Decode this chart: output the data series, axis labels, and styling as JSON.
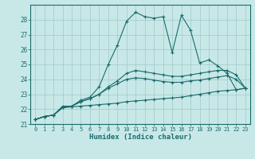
{
  "title": "",
  "xlabel": "Humidex (Indice chaleur)",
  "bg_color": "#c8e8e8",
  "grid_color": "#a0c8c8",
  "line_color": "#1a6b6b",
  "xlim": [
    -0.5,
    23.5
  ],
  "ylim": [
    21.0,
    29.0
  ],
  "yticks": [
    21,
    22,
    23,
    24,
    25,
    26,
    27,
    28
  ],
  "xticks": [
    0,
    1,
    2,
    3,
    4,
    5,
    6,
    7,
    8,
    9,
    10,
    11,
    12,
    13,
    14,
    15,
    16,
    17,
    18,
    19,
    20,
    21,
    22,
    23
  ],
  "lines": [
    [
      21.3,
      21.5,
      21.6,
      22.2,
      22.2,
      22.6,
      22.8,
      23.5,
      25.0,
      26.3,
      27.9,
      28.5,
      28.2,
      28.1,
      28.2,
      25.8,
      28.3,
      27.3,
      25.1,
      25.3,
      24.9,
      24.4,
      23.3,
      23.4
    ],
    [
      21.3,
      21.5,
      21.6,
      22.1,
      22.15,
      22.2,
      22.25,
      22.3,
      22.35,
      22.4,
      22.5,
      22.55,
      22.6,
      22.65,
      22.7,
      22.75,
      22.8,
      22.9,
      23.0,
      23.1,
      23.2,
      23.25,
      23.3,
      23.4
    ],
    [
      21.3,
      21.5,
      21.6,
      22.1,
      22.2,
      22.5,
      22.7,
      23.0,
      23.4,
      23.7,
      24.0,
      24.1,
      24.05,
      23.95,
      23.85,
      23.8,
      23.8,
      23.9,
      23.95,
      24.05,
      24.15,
      24.25,
      24.0,
      23.4
    ],
    [
      21.3,
      21.5,
      21.6,
      22.1,
      22.2,
      22.5,
      22.7,
      23.0,
      23.5,
      23.9,
      24.4,
      24.6,
      24.5,
      24.4,
      24.3,
      24.2,
      24.2,
      24.3,
      24.4,
      24.5,
      24.6,
      24.6,
      24.3,
      23.4
    ]
  ]
}
